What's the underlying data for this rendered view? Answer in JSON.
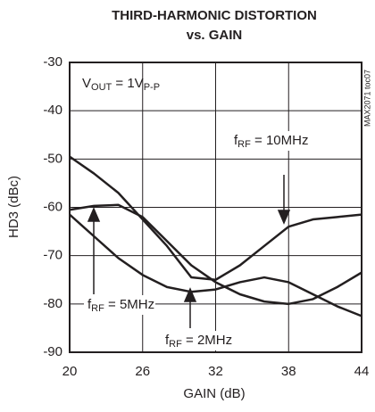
{
  "chart_data": {
    "type": "line",
    "title": "THIRD-HARMONIC DISTORTION",
    "subtitle": "vs. GAIN",
    "xlabel": "GAIN (dB)",
    "ylabel": "HD3 (dBc)",
    "side_note": "MAX2071 toc07",
    "x": [
      20,
      22,
      24,
      26,
      28,
      30,
      32,
      34,
      36,
      38,
      40,
      42,
      44
    ],
    "series": [
      {
        "color": "#231f20",
        "values": [
          -49.5,
          -53,
          -57,
          -62.5,
          -68,
          -74.5,
          -75,
          -72,
          -68,
          -64,
          -62.5,
          -62,
          -61.5
        ]
      },
      {
        "color": "#231f20",
        "values": [
          -60.5,
          -59.7,
          -59.5,
          -62,
          -67,
          -72,
          -75.5,
          -78,
          -79.5,
          -80,
          -79,
          -76.5,
          -73.5
        ]
      },
      {
        "color": "#231f20",
        "values": [
          -61.5,
          -66,
          -70.5,
          -74,
          -76.5,
          -77.5,
          -77,
          -75.5,
          -74.5,
          -75.5,
          -78,
          -80.5,
          -82.5
        ]
      }
    ],
    "annotations": [
      {
        "parts": [
          "V",
          "OUT",
          " = 1V",
          "P-P"
        ]
      },
      {
        "parts": [
          "f",
          "RF",
          " = 10MHz"
        ]
      },
      {
        "parts": [
          "f",
          "RF",
          " = 5MHz"
        ]
      },
      {
        "parts": [
          "f",
          "RF",
          " = 2MHz"
        ]
      }
    ],
    "xlim": [
      20,
      44
    ],
    "xticks": [
      20,
      26,
      32,
      38,
      44
    ],
    "ylim": [
      -90,
      -30
    ],
    "yticks": [
      -90,
      -80,
      -70,
      -60,
      -50,
      -40,
      -30
    ],
    "grid": true
  }
}
